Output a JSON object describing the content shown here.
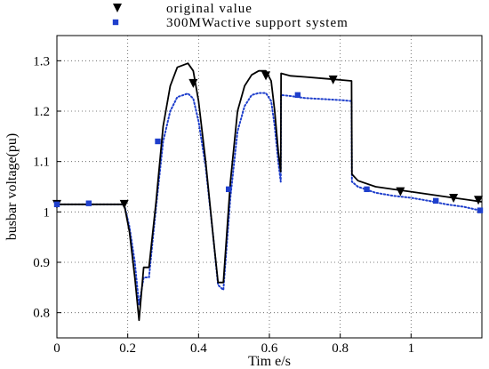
{
  "chart_data": {
    "type": "line",
    "title": "",
    "xlabel": "Tim e/s",
    "ylabel": "busbar voltage(pu)",
    "xlim": [
      0,
      1.2
    ],
    "ylim": [
      0.75,
      1.35
    ],
    "x_ticks": [
      0,
      0.2,
      0.4,
      0.6,
      0.8,
      1
    ],
    "x_tick_labels": [
      "0",
      "0.2",
      "0.4",
      "0.6",
      "0.8",
      "1"
    ],
    "y_ticks": [
      0.8,
      0.9,
      1,
      1.1,
      1.2,
      1.3
    ],
    "y_tick_labels": [
      "0.8",
      "0.9",
      "1",
      "1.1",
      "1.2",
      "1.3"
    ],
    "grid": true,
    "legend_position": "top",
    "series": [
      {
        "name": "original value",
        "color": "#000000",
        "line_style": "solid",
        "marker": "down-triangle",
        "x": [
          0,
          0.19,
          0.205,
          0.22,
          0.232,
          0.245,
          0.26,
          0.28,
          0.3,
          0.32,
          0.34,
          0.37,
          0.385,
          0.4,
          0.42,
          0.44,
          0.455,
          0.47,
          0.49,
          0.51,
          0.53,
          0.55,
          0.57,
          0.59,
          0.605,
          0.615,
          0.625,
          0.632,
          0.633,
          0.66,
          0.7,
          0.75,
          0.8,
          0.832,
          0.833,
          0.85,
          0.9,
          0.95,
          1,
          1.05,
          1.1,
          1.15,
          1.2
        ],
        "y": [
          1.015,
          1.015,
          0.96,
          0.87,
          0.785,
          0.89,
          0.89,
          1.02,
          1.17,
          1.25,
          1.287,
          1.295,
          1.28,
          1.22,
          1.1,
          0.96,
          0.86,
          0.86,
          1.06,
          1.2,
          1.25,
          1.272,
          1.28,
          1.28,
          1.26,
          1.2,
          1.12,
          1.08,
          1.275,
          1.27,
          1.268,
          1.265,
          1.262,
          1.26,
          1.075,
          1.062,
          1.05,
          1.045,
          1.04,
          1.035,
          1.03,
          1.025,
          1.02
        ],
        "marker_x": [
          0,
          0.19,
          0.385,
          0.59,
          0.78,
          0.97,
          1.12,
          1.19
        ],
        "marker_y": [
          1.015,
          1.015,
          1.255,
          1.27,
          1.262,
          1.04,
          1.027,
          1.023
        ]
      },
      {
        "name": "300MWactive support system",
        "color": "#1f3fcc",
        "line_style": "dotted",
        "marker": "square",
        "x": [
          0,
          0.19,
          0.205,
          0.22,
          0.232,
          0.245,
          0.26,
          0.28,
          0.3,
          0.32,
          0.34,
          0.37,
          0.385,
          0.4,
          0.42,
          0.44,
          0.455,
          0.47,
          0.49,
          0.51,
          0.53,
          0.55,
          0.57,
          0.59,
          0.605,
          0.615,
          0.625,
          0.632,
          0.633,
          0.66,
          0.7,
          0.75,
          0.8,
          0.832,
          0.833,
          0.85,
          0.9,
          0.95,
          1,
          1.05,
          1.1,
          1.15,
          1.2
        ],
        "y": [
          1.015,
          1.015,
          0.97,
          0.9,
          0.815,
          0.87,
          0.87,
          1.01,
          1.14,
          1.2,
          1.228,
          1.235,
          1.225,
          1.18,
          1.09,
          0.96,
          0.855,
          0.845,
          1.03,
          1.16,
          1.21,
          1.232,
          1.236,
          1.236,
          1.22,
          1.17,
          1.1,
          1.06,
          1.232,
          1.23,
          1.226,
          1.224,
          1.222,
          1.22,
          1.06,
          1.05,
          1.038,
          1.032,
          1.028,
          1.022,
          1.015,
          1.01,
          1.002
        ],
        "marker_x": [
          0,
          0.09,
          0.285,
          0.485,
          0.68,
          0.875,
          1.07,
          1.195
        ],
        "marker_y": [
          1.015,
          1.017,
          1.14,
          1.045,
          1.232,
          1.045,
          1.022,
          1.003
        ]
      }
    ]
  }
}
